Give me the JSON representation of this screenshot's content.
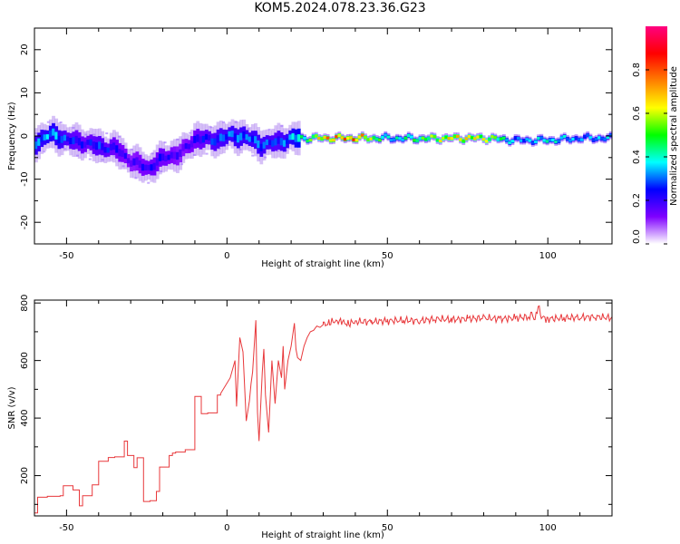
{
  "title": "KOM5.2024.078.23.36.G23",
  "chart_data": [
    {
      "type": "heatmap",
      "xlabel": "Height of straight line (km)",
      "ylabel": "Frequency (Hz)",
      "xlim": [
        -60,
        120
      ],
      "ylim": [
        -25,
        25
      ],
      "xticks": [
        -50,
        0,
        50,
        100
      ],
      "yticks": [
        -20,
        -10,
        0,
        10,
        20
      ],
      "colorbar": {
        "label": "Normalized spectral amplitude",
        "ticks": [
          0.0,
          0.2,
          0.4,
          0.6,
          0.8
        ],
        "tick_labels": [
          "0.0",
          "0.2",
          "0.4",
          "0.6",
          "0.8"
        ],
        "range": [
          0,
          1
        ],
        "colormap": [
          "#ffffff",
          "#7f00ff",
          "#0000ff",
          "#00ffff",
          "#00ff00",
          "#ffff00",
          "#ff7f00",
          "#ff0000",
          "#ff0080"
        ]
      },
      "ridge": [
        {
          "x": -60,
          "y": -1.5,
          "amp": 0.35
        },
        {
          "x": -55,
          "y": 0.5,
          "amp": 0.4
        },
        {
          "x": -50,
          "y": -1.0,
          "amp": 0.3
        },
        {
          "x": -45,
          "y": -1.5,
          "amp": 0.25
        },
        {
          "x": -40,
          "y": -2.5,
          "amp": 0.3
        },
        {
          "x": -35,
          "y": -3.0,
          "amp": 0.25
        },
        {
          "x": -30,
          "y": -6.0,
          "amp": 0.2
        },
        {
          "x": -25,
          "y": -7.5,
          "amp": 0.25
        },
        {
          "x": -20,
          "y": -5.0,
          "amp": 0.25
        },
        {
          "x": -15,
          "y": -4.0,
          "amp": 0.2
        },
        {
          "x": -10,
          "y": -0.5,
          "amp": 0.25
        },
        {
          "x": -5,
          "y": -1.0,
          "amp": 0.3
        },
        {
          "x": 0,
          "y": 0.0,
          "amp": 0.35
        },
        {
          "x": 5,
          "y": 0.0,
          "amp": 0.35
        },
        {
          "x": 10,
          "y": -2.0,
          "amp": 0.35
        },
        {
          "x": 15,
          "y": -1.5,
          "amp": 0.3
        },
        {
          "x": 20,
          "y": -0.5,
          "amp": 0.4
        },
        {
          "x": 25,
          "y": -0.5,
          "amp": 0.55
        },
        {
          "x": 30,
          "y": -0.5,
          "amp": 0.8
        },
        {
          "x": 40,
          "y": -0.5,
          "amp": 0.85
        },
        {
          "x": 50,
          "y": -0.5,
          "amp": 0.4
        },
        {
          "x": 60,
          "y": -0.6,
          "amp": 0.55
        },
        {
          "x": 70,
          "y": -0.5,
          "amp": 0.75
        },
        {
          "x": 80,
          "y": -0.5,
          "amp": 0.7
        },
        {
          "x": 90,
          "y": -1.0,
          "amp": 0.35
        },
        {
          "x": 100,
          "y": -1.0,
          "amp": 0.45
        },
        {
          "x": 110,
          "y": -0.5,
          "amp": 0.35
        },
        {
          "x": 120,
          "y": -0.5,
          "amp": 0.4
        }
      ]
    },
    {
      "type": "line",
      "xlabel": "Height of straight line (km)",
      "ylabel": "SNR (v/v)",
      "xlim": [
        -60,
        120
      ],
      "ylim": [
        60,
        810
      ],
      "xticks": [
        -50,
        0,
        50,
        100
      ],
      "yticks": [
        200,
        400,
        600,
        800
      ],
      "color": "#e8383b",
      "series": [
        {
          "x": [
            -60,
            -59,
            -56,
            -52,
            -51,
            -48,
            -46,
            -45,
            -42,
            -40,
            -37,
            -35,
            -32,
            -31,
            -29,
            -28,
            -26,
            -24,
            -22,
            -21,
            -18,
            -17,
            -16,
            -13,
            -10,
            -8,
            -6,
            -3,
            -2,
            1,
            2.5,
            3,
            4,
            5,
            6,
            7,
            7.5,
            8,
            9,
            9.5,
            10,
            11,
            11.5,
            12,
            13,
            14,
            15,
            16,
            17,
            17.5,
            18,
            19,
            20,
            21,
            21.5,
            22,
            23,
            24,
            25,
            26,
            27,
            28,
            29,
            30,
            32,
            34,
            36,
            38,
            40,
            45,
            50,
            55,
            60,
            65,
            70,
            75,
            80,
            85,
            90,
            94,
            95,
            96,
            97,
            98,
            100,
            105,
            110,
            115,
            120
          ],
          "y": [
            70,
            125,
            128,
            130,
            165,
            150,
            95,
            130,
            168,
            250,
            263,
            265,
            320,
            270,
            228,
            262,
            110,
            113,
            145,
            230,
            270,
            278,
            282,
            290,
            475,
            415,
            418,
            480,
            485,
            540,
            600,
            440,
            680,
            630,
            390,
            460,
            520,
            560,
            740,
            420,
            320,
            560,
            640,
            480,
            350,
            600,
            450,
            600,
            540,
            650,
            500,
            600,
            650,
            730,
            640,
            610,
            600,
            650,
            680,
            700,
            705,
            720,
            715,
            725,
            730,
            740,
            732,
            728,
            735,
            735,
            738,
            740,
            738,
            745,
            742,
            745,
            748,
            745,
            748,
            752,
            765,
            740,
            790,
            750,
            745,
            748,
            750,
            752,
            748
          ]
        }
      ]
    }
  ]
}
